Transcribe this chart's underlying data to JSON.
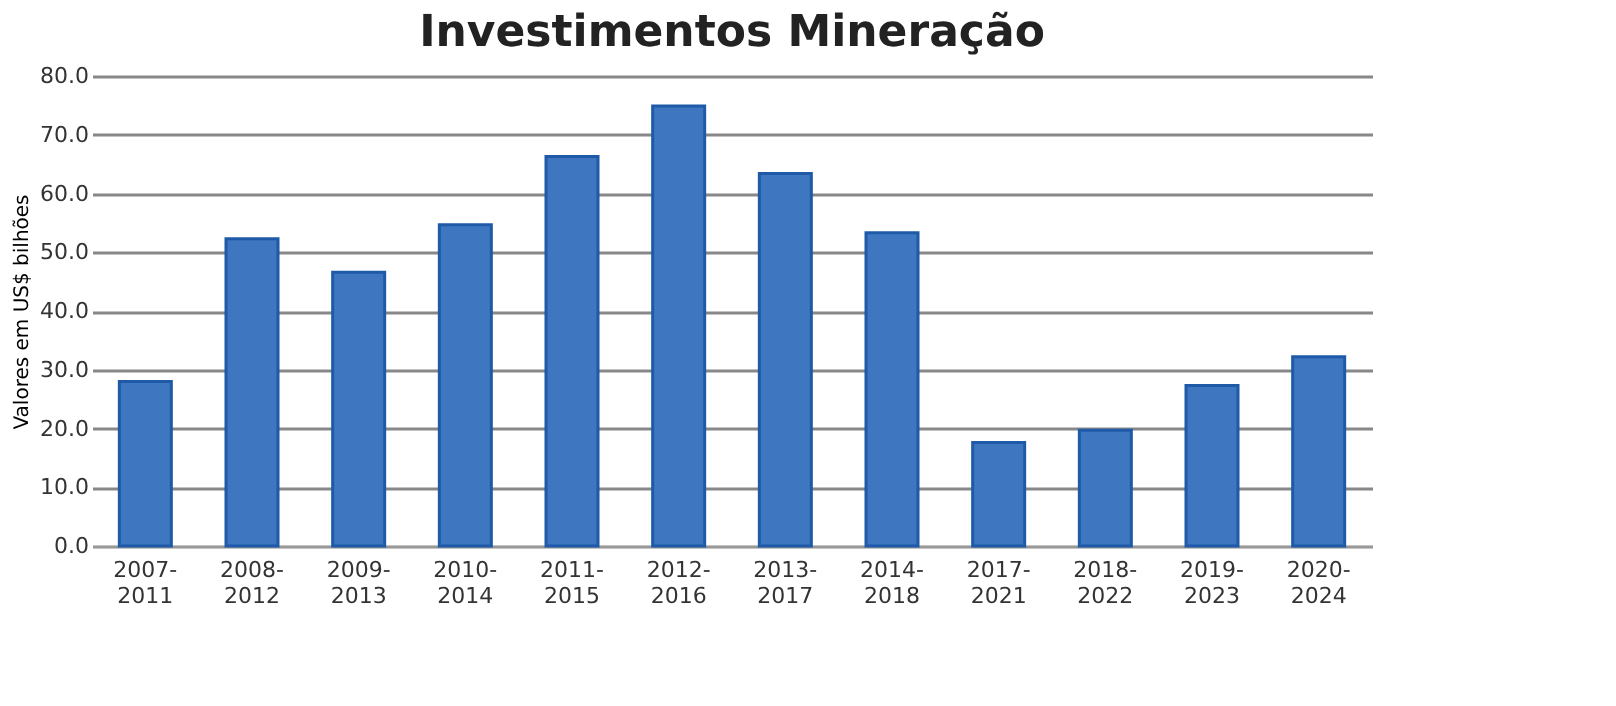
{
  "chart_data": {
    "type": "bar",
    "title": "Investimentos Mineração",
    "ylabel": "Valores em US$ bilhões",
    "categories": [
      "2007-2011",
      "2008-2012",
      "2009-2013",
      "2010-2014",
      "2011-2015",
      "2012-2016",
      "2013-2017",
      "2014-2018",
      "2017-2021",
      "2018-2022",
      "2019-2023",
      "2020-2024"
    ],
    "values": [
      28,
      52.3,
      46.6,
      54.7,
      66.3,
      74.9,
      63.4,
      53.3,
      17.6,
      19.7,
      27.3,
      32.2
    ],
    "color": "#3f76c0",
    "ylim": [
      0,
      80
    ],
    "yticks": [
      {
        "value": 0,
        "label": "0.0"
      },
      {
        "value": 10,
        "label": "10.0"
      },
      {
        "value": 20,
        "label": "20.0"
      },
      {
        "value": 30,
        "label": "30.0"
      },
      {
        "value": 40,
        "label": "40.0"
      },
      {
        "value": 50,
        "label": "50.0"
      },
      {
        "value": 60,
        "label": "60.0"
      },
      {
        "value": 70,
        "label": "70.0"
      },
      {
        "value": 80,
        "label": "80.0"
      }
    ],
    "grid": "y"
  }
}
